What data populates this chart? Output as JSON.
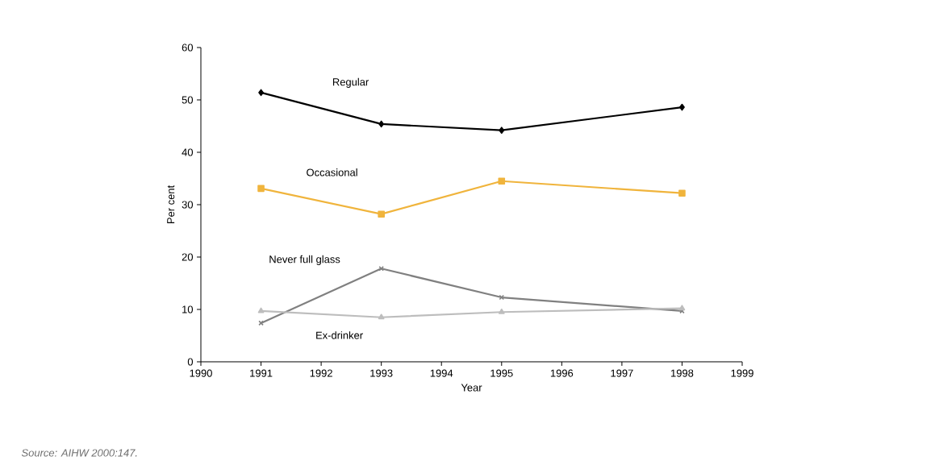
{
  "chart_data": {
    "type": "line",
    "x": [
      1991,
      1993,
      1995,
      1998
    ],
    "series": [
      {
        "name": "Regular",
        "color": "#000000",
        "marker": "diamond",
        "values": [
          51.4,
          45.4,
          44.2,
          48.6
        ]
      },
      {
        "name": "Occasional",
        "color": "#f0b43c",
        "marker": "square",
        "values": [
          33.1,
          28.2,
          34.5,
          32.2
        ]
      },
      {
        "name": "Never full glass",
        "color": "#808080",
        "marker": "cross",
        "values": [
          7.4,
          17.8,
          12.3,
          9.7
        ]
      },
      {
        "name": "Ex-drinker",
        "color": "#bdbdbd",
        "marker": "triangle",
        "values": [
          9.7,
          8.5,
          9.5,
          10.2
        ]
      }
    ],
    "xlabel": "Year",
    "ylabel": "Per cent",
    "xlim": [
      1990,
      1999
    ],
    "xticks": [
      1990,
      1991,
      1992,
      1993,
      1994,
      1995,
      1996,
      1997,
      1998,
      1999
    ],
    "ylim": [
      0,
      60
    ],
    "yticks": [
      0,
      10,
      20,
      30,
      40,
      50,
      60
    ],
    "grid": false,
    "line_style": "solid",
    "annotations": [
      "Source: AIHW 2000:147."
    ]
  }
}
